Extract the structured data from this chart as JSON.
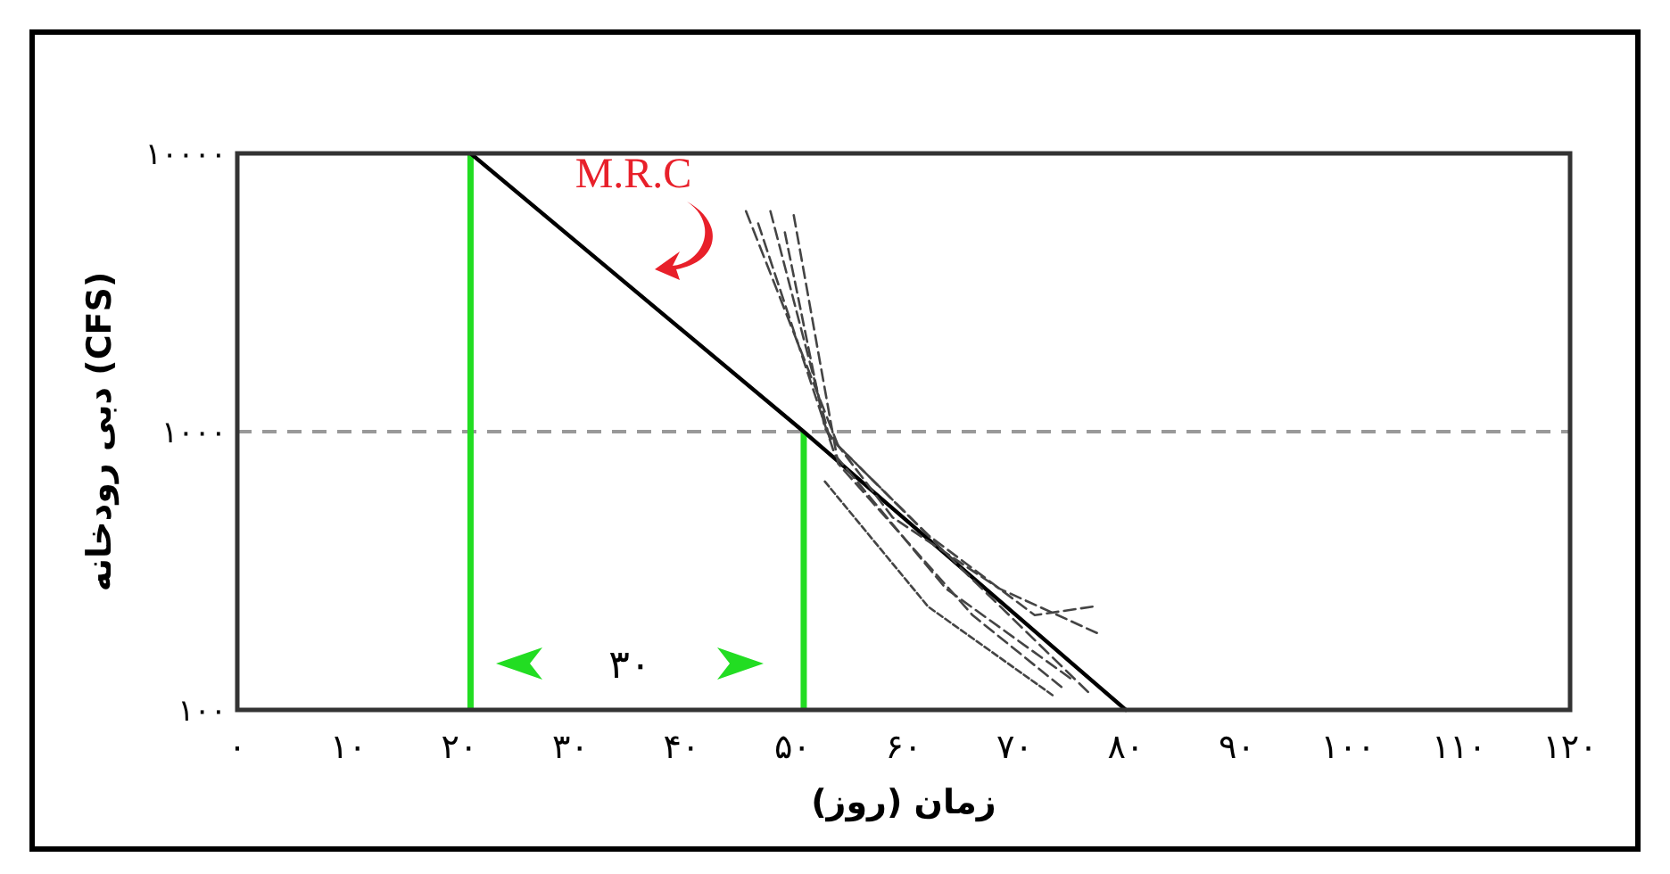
{
  "chart_data": {
    "type": "line",
    "ylabel": "دبی رودخانه (CFS)",
    "xlabel": "زمان (روز)",
    "log": "y",
    "grid": false,
    "xlim": [
      0,
      120
    ],
    "ylim": [
      100,
      10000
    ],
    "xticks": [
      {
        "value": 0,
        "label": "۰"
      },
      {
        "value": 10,
        "label": "۱۰"
      },
      {
        "value": 20,
        "label": "۲۰"
      },
      {
        "value": 30,
        "label": "۳۰"
      },
      {
        "value": 40,
        "label": "۴۰"
      },
      {
        "value": 50,
        "label": "۵۰"
      },
      {
        "value": 60,
        "label": "۶۰"
      },
      {
        "value": 70,
        "label": "۷۰"
      },
      {
        "value": 80,
        "label": "۸۰"
      },
      {
        "value": 90,
        "label": "۹۰"
      },
      {
        "value": 100,
        "label": "۱۰۰"
      },
      {
        "value": 110,
        "label": "۱۱۰"
      },
      {
        "value": 120,
        "label": "۱۲۰"
      }
    ],
    "yticks": [
      {
        "value": 100,
        "label": "۱۰۰"
      },
      {
        "value": 1000,
        "label": "۱۰۰۰"
      },
      {
        "value": 10000,
        "label": "۱۰۰۰۰"
      }
    ],
    "series": [
      {
        "color": "#000000",
        "line_style": "solid",
        "x": [
          21,
          51,
          80
        ],
        "values": [
          10000,
          1000,
          100
        ]
      },
      {
        "color": "#444444",
        "line_style": "dashed",
        "x": [
          45.8,
          54.1,
          65.4,
          76.6
        ],
        "values": [
          6200,
          890,
          316,
          116
        ]
      },
      {
        "color": "#444444",
        "line_style": "dashed",
        "x": [
          48,
          53.3,
          62.2,
          71.8,
          77
        ],
        "values": [
          6200,
          957,
          425,
          219,
          235
        ]
      },
      {
        "color": "#444444",
        "line_style": "dashed",
        "x": [
          46.9,
          53.8,
          63.8,
          75
        ],
        "values": [
          5600,
          826,
          273,
          130
        ]
      },
      {
        "color": "#444444",
        "line_style": "dashed",
        "x": [
          49.3,
          52.9,
          59,
          68.6,
          77.4
        ],
        "values": [
          5200,
          1030,
          492,
          273,
          189
        ]
      },
      {
        "color": "#444444",
        "line_style": "dashed",
        "x": [
          52.9,
          62.2,
          73.4
        ],
        "values": [
          662,
          235,
          113
        ]
      },
      {
        "color": "#444444",
        "line_style": "dashed",
        "x": [
          50.1,
          54.1,
          66.2,
          74.2
        ],
        "values": [
          6000,
          767,
          219,
          121
        ]
      }
    ],
    "ref_lines": [
      {
        "axis": "y",
        "value": 1000,
        "color": "#999999",
        "line_style": "dashed"
      },
      {
        "axis": "x",
        "value": 21,
        "color": "#22dd22",
        "line_style": "solid"
      },
      {
        "axis": "x",
        "value": 51,
        "color": "#22dd22",
        "line_style": "solid"
      }
    ],
    "annotations": [
      "M.R.C",
      "۳۰"
    ]
  }
}
